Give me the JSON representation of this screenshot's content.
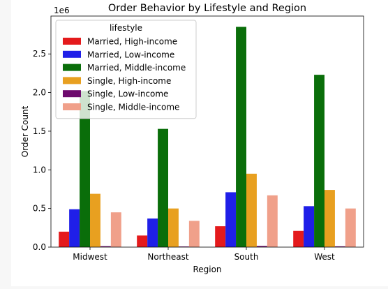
{
  "chart_data": {
    "type": "bar",
    "title": "Order Behavior by Lifestyle and Region",
    "xlabel": "Region",
    "ylabel": "Order Count",
    "y_offset_label": "1e6",
    "categories": [
      "Midwest",
      "Northeast",
      "South",
      "West"
    ],
    "ylim": [
      0,
      2.99
    ],
    "yticks": [
      0.0,
      0.5,
      1.0,
      1.5,
      2.0,
      2.5
    ],
    "ytick_labels": [
      "0.0",
      "0.5",
      "1.0",
      "1.5",
      "2.0",
      "2.5"
    ],
    "value_unit": "millions of orders (axis scaled by 1e6)",
    "grid": false,
    "legend": {
      "title": "lifestyle",
      "placement": "upper-left"
    },
    "series": [
      {
        "name": "Married, High-income",
        "color": "#e41a1c",
        "values": [
          0.2,
          0.15,
          0.27,
          0.21
        ]
      },
      {
        "name": "Married, Low-income",
        "color": "#1f1fe8",
        "values": [
          0.49,
          0.37,
          0.71,
          0.53
        ]
      },
      {
        "name": "Married, Middle-income",
        "color": "#0a6e0a",
        "values": [
          2.02,
          1.53,
          2.85,
          2.23
        ]
      },
      {
        "name": "Single, High-income",
        "color": "#e8a020",
        "values": [
          0.69,
          0.5,
          0.95,
          0.74
        ]
      },
      {
        "name": "Single, Low-income",
        "color": "#6d0a6d",
        "values": [
          0.012,
          0.008,
          0.015,
          0.01
        ]
      },
      {
        "name": "Single, Middle-income",
        "color": "#f0a08a",
        "values": [
          0.45,
          0.34,
          0.67,
          0.5
        ]
      }
    ]
  }
}
